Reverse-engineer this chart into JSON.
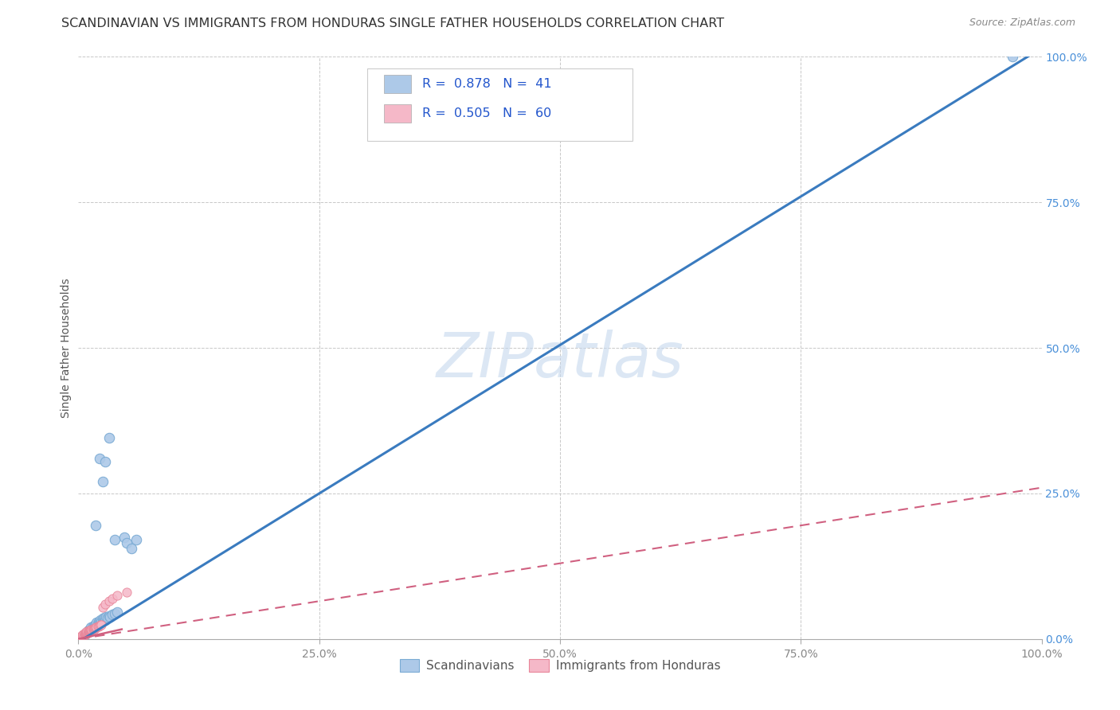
{
  "title": "SCANDINAVIAN VS IMMIGRANTS FROM HONDURAS SINGLE FATHER HOUSEHOLDS CORRELATION CHART",
  "source": "Source: ZipAtlas.com",
  "ylabel": "Single Father Households",
  "xlim": [
    0,
    1.0
  ],
  "ylim": [
    0,
    1.0
  ],
  "xticks": [
    0.0,
    0.25,
    0.5,
    0.75,
    1.0
  ],
  "yticks": [
    0.0,
    0.25,
    0.5,
    0.75,
    1.0
  ],
  "xticklabels": [
    "0.0%",
    "25.0%",
    "50.0%",
    "75.0%",
    "100.0%"
  ],
  "yticklabels": [
    "0.0%",
    "25.0%",
    "50.0%",
    "75.0%",
    "100.0%"
  ],
  "watermark": "ZIPatlas",
  "scandinavian_color": "#adc9e8",
  "scandinavian_edge": "#7aabd4",
  "honduras_color": "#f5b8c8",
  "honduras_edge": "#e8869a",
  "line1_color": "#3a7bbf",
  "line2_color": "#d06080",
  "line2_dash_color": "#d06080",
  "background_color": "#ffffff",
  "grid_color": "#c8c8c8",
  "legend_blue_text": "R =  0.878   N =  41",
  "legend_pink_text": "R =  0.505   N =  60",
  "legend_label_scand": "Scandinavians",
  "legend_label_hond": "Immigrants from Honduras",
  "blue_slope": 1.02,
  "blue_intercept": -0.005,
  "pink_slope": 0.26,
  "pink_intercept": 0.0,
  "scandinavian_scatter": [
    [
      0.005,
      0.005
    ],
    [
      0.007,
      0.008
    ],
    [
      0.008,
      0.01
    ],
    [
      0.009,
      0.012
    ],
    [
      0.01,
      0.015
    ],
    [
      0.011,
      0.013
    ],
    [
      0.012,
      0.018
    ],
    [
      0.013,
      0.02
    ],
    [
      0.014,
      0.016
    ],
    [
      0.015,
      0.022
    ],
    [
      0.016,
      0.02
    ],
    [
      0.017,
      0.025
    ],
    [
      0.018,
      0.023
    ],
    [
      0.019,
      0.028
    ],
    [
      0.02,
      0.026
    ],
    [
      0.021,
      0.03
    ],
    [
      0.022,
      0.028
    ],
    [
      0.023,
      0.032
    ],
    [
      0.024,
      0.03
    ],
    [
      0.025,
      0.035
    ],
    [
      0.026,
      0.032
    ],
    [
      0.027,
      0.036
    ],
    [
      0.028,
      0.033
    ],
    [
      0.029,
      0.038
    ],
    [
      0.03,
      0.036
    ],
    [
      0.032,
      0.04
    ],
    [
      0.033,
      0.038
    ],
    [
      0.035,
      0.042
    ],
    [
      0.038,
      0.044
    ],
    [
      0.04,
      0.046
    ],
    [
      0.018,
      0.195
    ],
    [
      0.022,
      0.31
    ],
    [
      0.025,
      0.27
    ],
    [
      0.028,
      0.305
    ],
    [
      0.032,
      0.345
    ],
    [
      0.038,
      0.17
    ],
    [
      0.048,
      0.175
    ],
    [
      0.05,
      0.165
    ],
    [
      0.055,
      0.155
    ],
    [
      0.06,
      0.17
    ],
    [
      0.97,
      1.0
    ]
  ],
  "honduras_scatter": [
    [
      0.001,
      0.002
    ],
    [
      0.002,
      0.003
    ],
    [
      0.003,
      0.004
    ],
    [
      0.003,
      0.005
    ],
    [
      0.004,
      0.005
    ],
    [
      0.004,
      0.006
    ],
    [
      0.005,
      0.006
    ],
    [
      0.005,
      0.007
    ],
    [
      0.005,
      0.008
    ],
    [
      0.006,
      0.007
    ],
    [
      0.006,
      0.008
    ],
    [
      0.006,
      0.009
    ],
    [
      0.007,
      0.008
    ],
    [
      0.007,
      0.009
    ],
    [
      0.007,
      0.01
    ],
    [
      0.007,
      0.011
    ],
    [
      0.008,
      0.009
    ],
    [
      0.008,
      0.01
    ],
    [
      0.008,
      0.011
    ],
    [
      0.008,
      0.012
    ],
    [
      0.009,
      0.01
    ],
    [
      0.009,
      0.011
    ],
    [
      0.009,
      0.012
    ],
    [
      0.009,
      0.013
    ],
    [
      0.01,
      0.011
    ],
    [
      0.01,
      0.012
    ],
    [
      0.01,
      0.013
    ],
    [
      0.01,
      0.014
    ],
    [
      0.011,
      0.012
    ],
    [
      0.011,
      0.013
    ],
    [
      0.011,
      0.014
    ],
    [
      0.011,
      0.015
    ],
    [
      0.012,
      0.013
    ],
    [
      0.012,
      0.014
    ],
    [
      0.012,
      0.015
    ],
    [
      0.013,
      0.014
    ],
    [
      0.013,
      0.015
    ],
    [
      0.013,
      0.016
    ],
    [
      0.014,
      0.015
    ],
    [
      0.014,
      0.016
    ],
    [
      0.015,
      0.016
    ],
    [
      0.015,
      0.017
    ],
    [
      0.016,
      0.017
    ],
    [
      0.016,
      0.018
    ],
    [
      0.017,
      0.018
    ],
    [
      0.017,
      0.019
    ],
    [
      0.018,
      0.019
    ],
    [
      0.018,
      0.02
    ],
    [
      0.019,
      0.02
    ],
    [
      0.02,
      0.021
    ],
    [
      0.021,
      0.022
    ],
    [
      0.022,
      0.023
    ],
    [
      0.023,
      0.024
    ],
    [
      0.024,
      0.025
    ],
    [
      0.025,
      0.055
    ],
    [
      0.028,
      0.06
    ],
    [
      0.032,
      0.065
    ],
    [
      0.035,
      0.07
    ],
    [
      0.04,
      0.075
    ],
    [
      0.05,
      0.08
    ]
  ]
}
